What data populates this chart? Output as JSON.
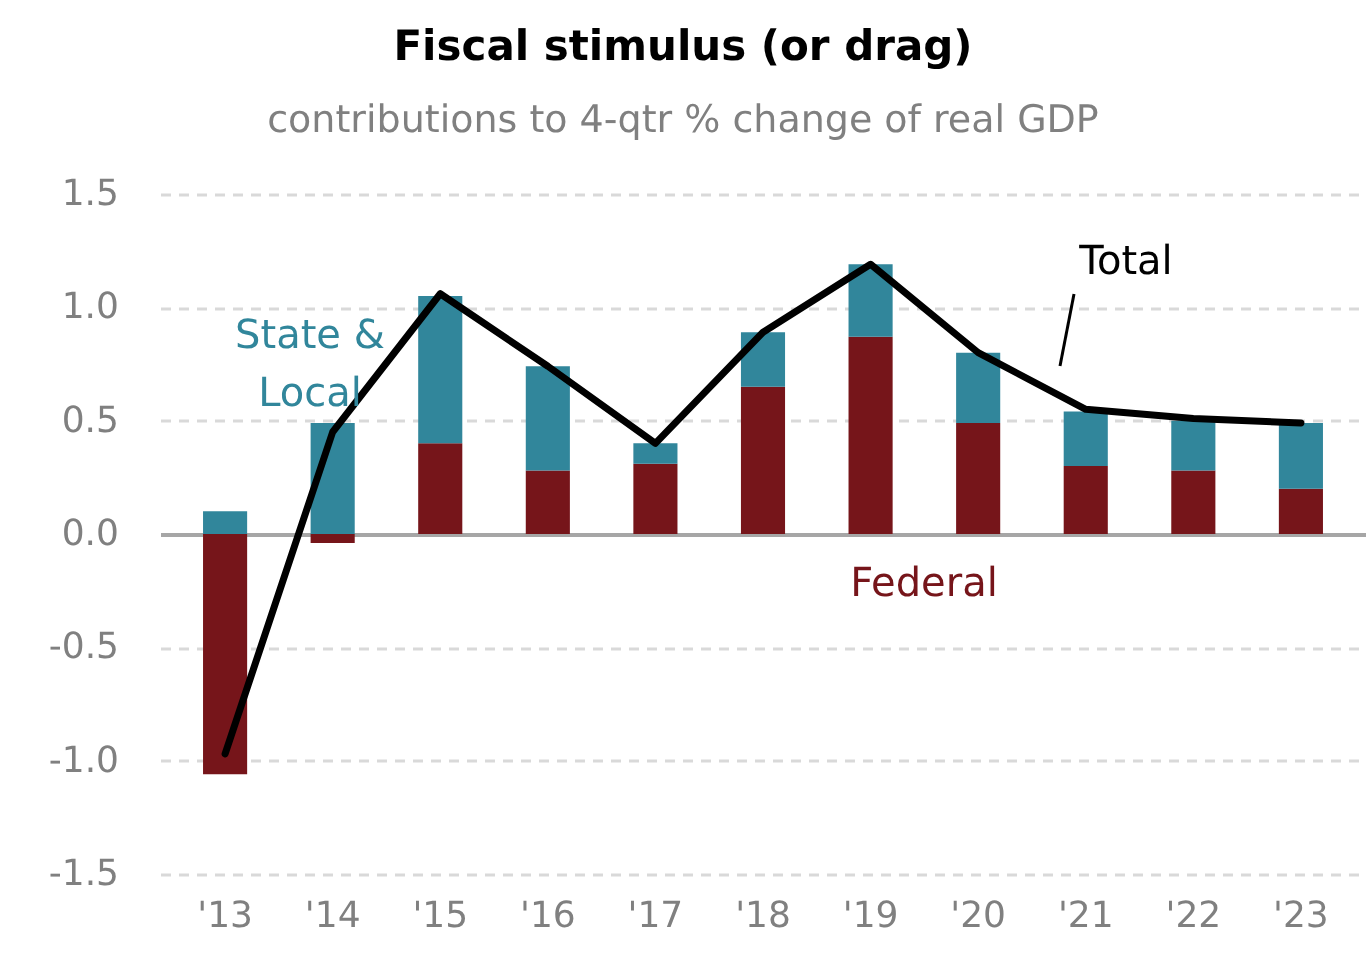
{
  "chart_data": {
    "type": "bar",
    "title": "Fiscal stimulus (or drag)",
    "subtitle": "contributions to 4-qtr % change of real GDP",
    "categories": [
      "'13",
      "'14",
      "'15",
      "'16",
      "'17",
      "'18",
      "'19",
      "'20",
      "'21",
      "'22",
      "'23"
    ],
    "stacked": true,
    "series": [
      {
        "name": "Federal",
        "color": "#76151a",
        "values": [
          -1.06,
          -0.04,
          0.4,
          0.28,
          0.31,
          0.65,
          0.87,
          0.49,
          0.3,
          0.28,
          0.2
        ]
      },
      {
        "name": "State & Local",
        "color": "#31869b",
        "values": [
          0.1,
          0.49,
          0.65,
          0.46,
          0.09,
          0.24,
          0.32,
          0.31,
          0.24,
          0.22,
          0.29
        ]
      },
      {
        "name": "Total",
        "type": "line",
        "color": "#000000",
        "values": [
          -0.97,
          0.45,
          1.06,
          0.74,
          0.4,
          0.89,
          1.19,
          0.8,
          0.55,
          0.51,
          0.49
        ]
      }
    ],
    "ylim": [
      -1.5,
      1.5
    ],
    "yticks": [
      -1.5,
      {
        "value": -1,
        "label": "-1.0"
      },
      -0.5,
      {
        "value": 0,
        "label": "0.0"
      },
      0.5,
      {
        "value": 1,
        "label": "1.0"
      },
      1.5
    ],
    "grid": "y",
    "legend": false
  }
}
